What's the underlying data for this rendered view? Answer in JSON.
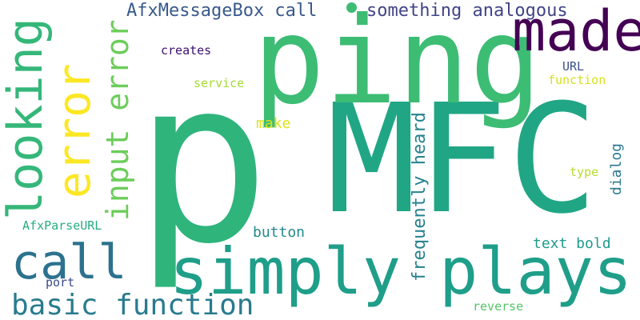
{
  "words": [
    {
      "text": "p",
      "color": "#2fb47c"
    },
    {
      "text": "MFC",
      "color": "#21a685"
    },
    {
      "text": "ping",
      "color": "#3dbc74"
    },
    {
      "text": "made",
      "color": "#440154"
    },
    {
      "text": "simply plays",
      "color": "#1f9e89"
    },
    {
      "text": "call",
      "color": "#2c728e"
    },
    {
      "text": "basic function",
      "color": "#297b8e"
    },
    {
      "text": "looking",
      "color": "#35b779"
    },
    {
      "text": "error",
      "color": "#fde725"
    },
    {
      "text": "input error",
      "color": "#6ccd5a"
    },
    {
      "text": "AfxMessageBox call",
      "color": "#38598c"
    },
    {
      "text": "something analogous",
      "color": "#414487"
    },
    {
      "text": "frequently heard",
      "color": "#26828e"
    },
    {
      "text": "creates",
      "color": "#3b0f70"
    },
    {
      "text": "service",
      "color": "#a5db36"
    },
    {
      "text": "make",
      "color": "#dde318"
    },
    {
      "text": "URL",
      "color": "#3b528b"
    },
    {
      "text": "function",
      "color": "#d8e219"
    },
    {
      "text": "dialog",
      "color": "#2a788e"
    },
    {
      "text": "type",
      "color": "#b5de2b"
    },
    {
      "text": "button",
      "color": "#23898e"
    },
    {
      "text": "text bold",
      "color": "#1e9b8a"
    },
    {
      "text": "AfxParseURL",
      "color": "#27ad81"
    },
    {
      "text": "port",
      "color": "#3e4a89"
    },
    {
      "text": "reverse",
      "color": "#52c569"
    }
  ]
}
